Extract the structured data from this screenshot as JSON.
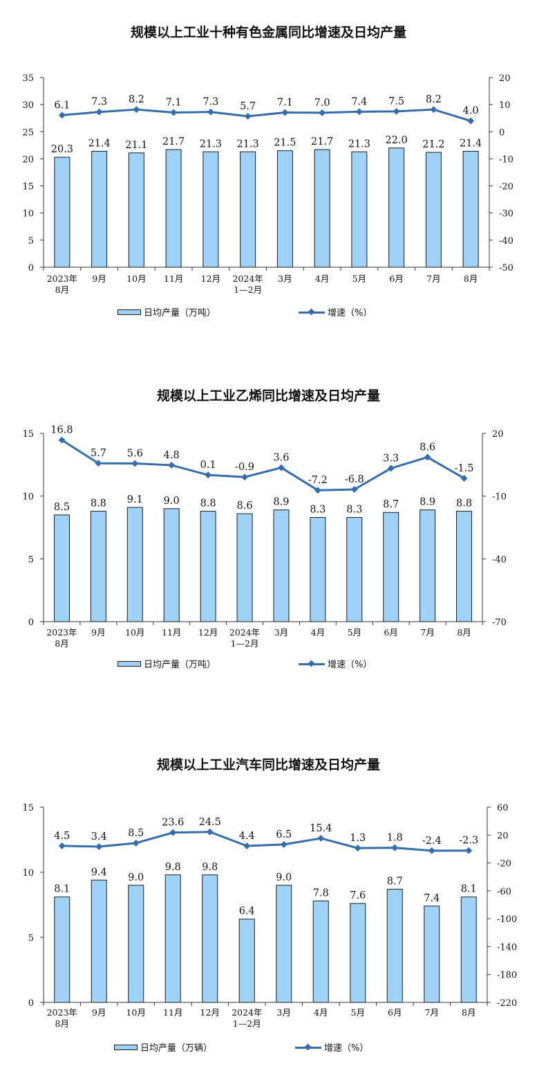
{
  "colors": {
    "bar_fill": "#9fd2f7",
    "bar_stroke": "#1a1a1a",
    "line": "#2f6db5",
    "axis": "#333333"
  },
  "chart_data": [
    {
      "type": "bar+line",
      "title": "规模以上工业十种有色金属同比增速及日均产量",
      "categories": [
        [
          "2023年",
          "8月"
        ],
        [
          "9月"
        ],
        [
          "10月"
        ],
        [
          "11月"
        ],
        [
          "12月"
        ],
        [
          "2024年",
          "1—2月"
        ],
        [
          "3月"
        ],
        [
          "4月"
        ],
        [
          "5月"
        ],
        [
          "6月"
        ],
        [
          "7月"
        ],
        [
          "8月"
        ]
      ],
      "bar_series": {
        "name": "日均产量（万吨）",
        "values": [
          20.3,
          21.4,
          21.1,
          21.7,
          21.3,
          21.3,
          21.5,
          21.7,
          21.3,
          22.0,
          21.2,
          21.4
        ],
        "labels": [
          "20.3",
          "21.4",
          "21.1",
          "21.7",
          "21.3",
          "21.3",
          "21.5",
          "21.7",
          "21.3",
          "22.0",
          "21.2",
          "21.4"
        ]
      },
      "line_series": {
        "name": "增速（%）",
        "values": [
          6.1,
          7.3,
          8.2,
          7.1,
          7.3,
          5.7,
          7.1,
          7.0,
          7.4,
          7.5,
          8.2,
          4.0
        ],
        "labels": [
          "6.1",
          "7.3",
          "8.2",
          "7.1",
          "7.3",
          "5.7",
          "7.1",
          "7.0",
          "7.4",
          "7.5",
          "8.2",
          "4.0"
        ]
      },
      "left_axis": {
        "min": 0,
        "max": 35,
        "ticks": [
          "0",
          "5",
          "10",
          "15",
          "20",
          "25",
          "30",
          "35"
        ]
      },
      "right_axis": {
        "min": -50,
        "max": 20,
        "ticks": [
          "-50",
          "-40",
          "-30",
          "-20",
          "-10",
          "0",
          "10",
          "20"
        ]
      },
      "legend": "bottom"
    },
    {
      "type": "bar+line",
      "title": "规模以上工业乙烯同比增速及日均产量",
      "categories": [
        [
          "2023年",
          "8月"
        ],
        [
          "9月"
        ],
        [
          "10月"
        ],
        [
          "11月"
        ],
        [
          "12月"
        ],
        [
          "2024年",
          "1—2月"
        ],
        [
          "3月"
        ],
        [
          "4月"
        ],
        [
          "5月"
        ],
        [
          "6月"
        ],
        [
          "7月"
        ],
        [
          "8月"
        ]
      ],
      "bar_series": {
        "name": "日均产量（万吨）",
        "values": [
          8.5,
          8.8,
          9.1,
          9.0,
          8.8,
          8.6,
          8.9,
          8.3,
          8.3,
          8.7,
          8.9,
          8.8
        ],
        "labels": [
          "8.5",
          "8.8",
          "9.1",
          "9.0",
          "8.8",
          "8.6",
          "8.9",
          "8.3",
          "8.3",
          "8.7",
          "8.9",
          "8.8"
        ]
      },
      "line_series": {
        "name": "增速（%）",
        "values": [
          16.8,
          5.7,
          5.6,
          4.8,
          0.1,
          -0.9,
          3.6,
          -7.2,
          -6.8,
          3.3,
          8.6,
          -1.5
        ],
        "labels": [
          "16.8",
          "5.7",
          "5.6",
          "4.8",
          "0.1",
          "-0.9",
          "3.6",
          "-7.2",
          "-6.8",
          "3.3",
          "8.6",
          "-1.5"
        ]
      },
      "left_axis": {
        "min": 0,
        "max": 15,
        "ticks": [
          "0",
          "5",
          "10",
          "15"
        ]
      },
      "right_axis": {
        "min": -70,
        "max": 20,
        "ticks": [
          "-70",
          "-40",
          "-10",
          "20"
        ]
      },
      "legend": "bottom"
    },
    {
      "type": "bar+line",
      "title": "规模以上工业汽车同比增速及日均产量",
      "categories": [
        [
          "2023年",
          "8月"
        ],
        [
          "9月"
        ],
        [
          "10月"
        ],
        [
          "11月"
        ],
        [
          "12月"
        ],
        [
          "2024年",
          "1—2月"
        ],
        [
          "3月"
        ],
        [
          "4月"
        ],
        [
          "5月"
        ],
        [
          "6月"
        ],
        [
          "7月"
        ],
        [
          "8月"
        ]
      ],
      "bar_series": {
        "name": "日均产量（万辆）",
        "values": [
          8.1,
          9.4,
          9.0,
          9.8,
          9.8,
          6.4,
          9.0,
          7.8,
          7.6,
          8.7,
          7.4,
          8.1
        ],
        "labels": [
          "8.1",
          "9.4",
          "9.0",
          "9.8",
          "9.8",
          "6.4",
          "9.0",
          "7.8",
          "7.6",
          "8.7",
          "7.4",
          "8.1"
        ]
      },
      "line_series": {
        "name": "增速（%）",
        "values": [
          4.5,
          3.4,
          8.5,
          23.6,
          24.5,
          4.4,
          6.5,
          15.4,
          1.3,
          1.8,
          -2.4,
          -2.3
        ],
        "labels": [
          "4.5",
          "3.4",
          "8.5",
          "23.6",
          "24.5",
          "4.4",
          "6.5",
          "15.4",
          "1.3",
          "1.8",
          "-2.4",
          "-2.3"
        ]
      },
      "left_axis": {
        "min": 0,
        "max": 15,
        "ticks": [
          "0",
          "5",
          "10",
          "15"
        ]
      },
      "right_axis": {
        "min": -220,
        "max": 60,
        "ticks": [
          "-220",
          "-180",
          "-140",
          "-100",
          "-60",
          "-20",
          "20",
          "60"
        ]
      },
      "legend": "bottom"
    }
  ]
}
